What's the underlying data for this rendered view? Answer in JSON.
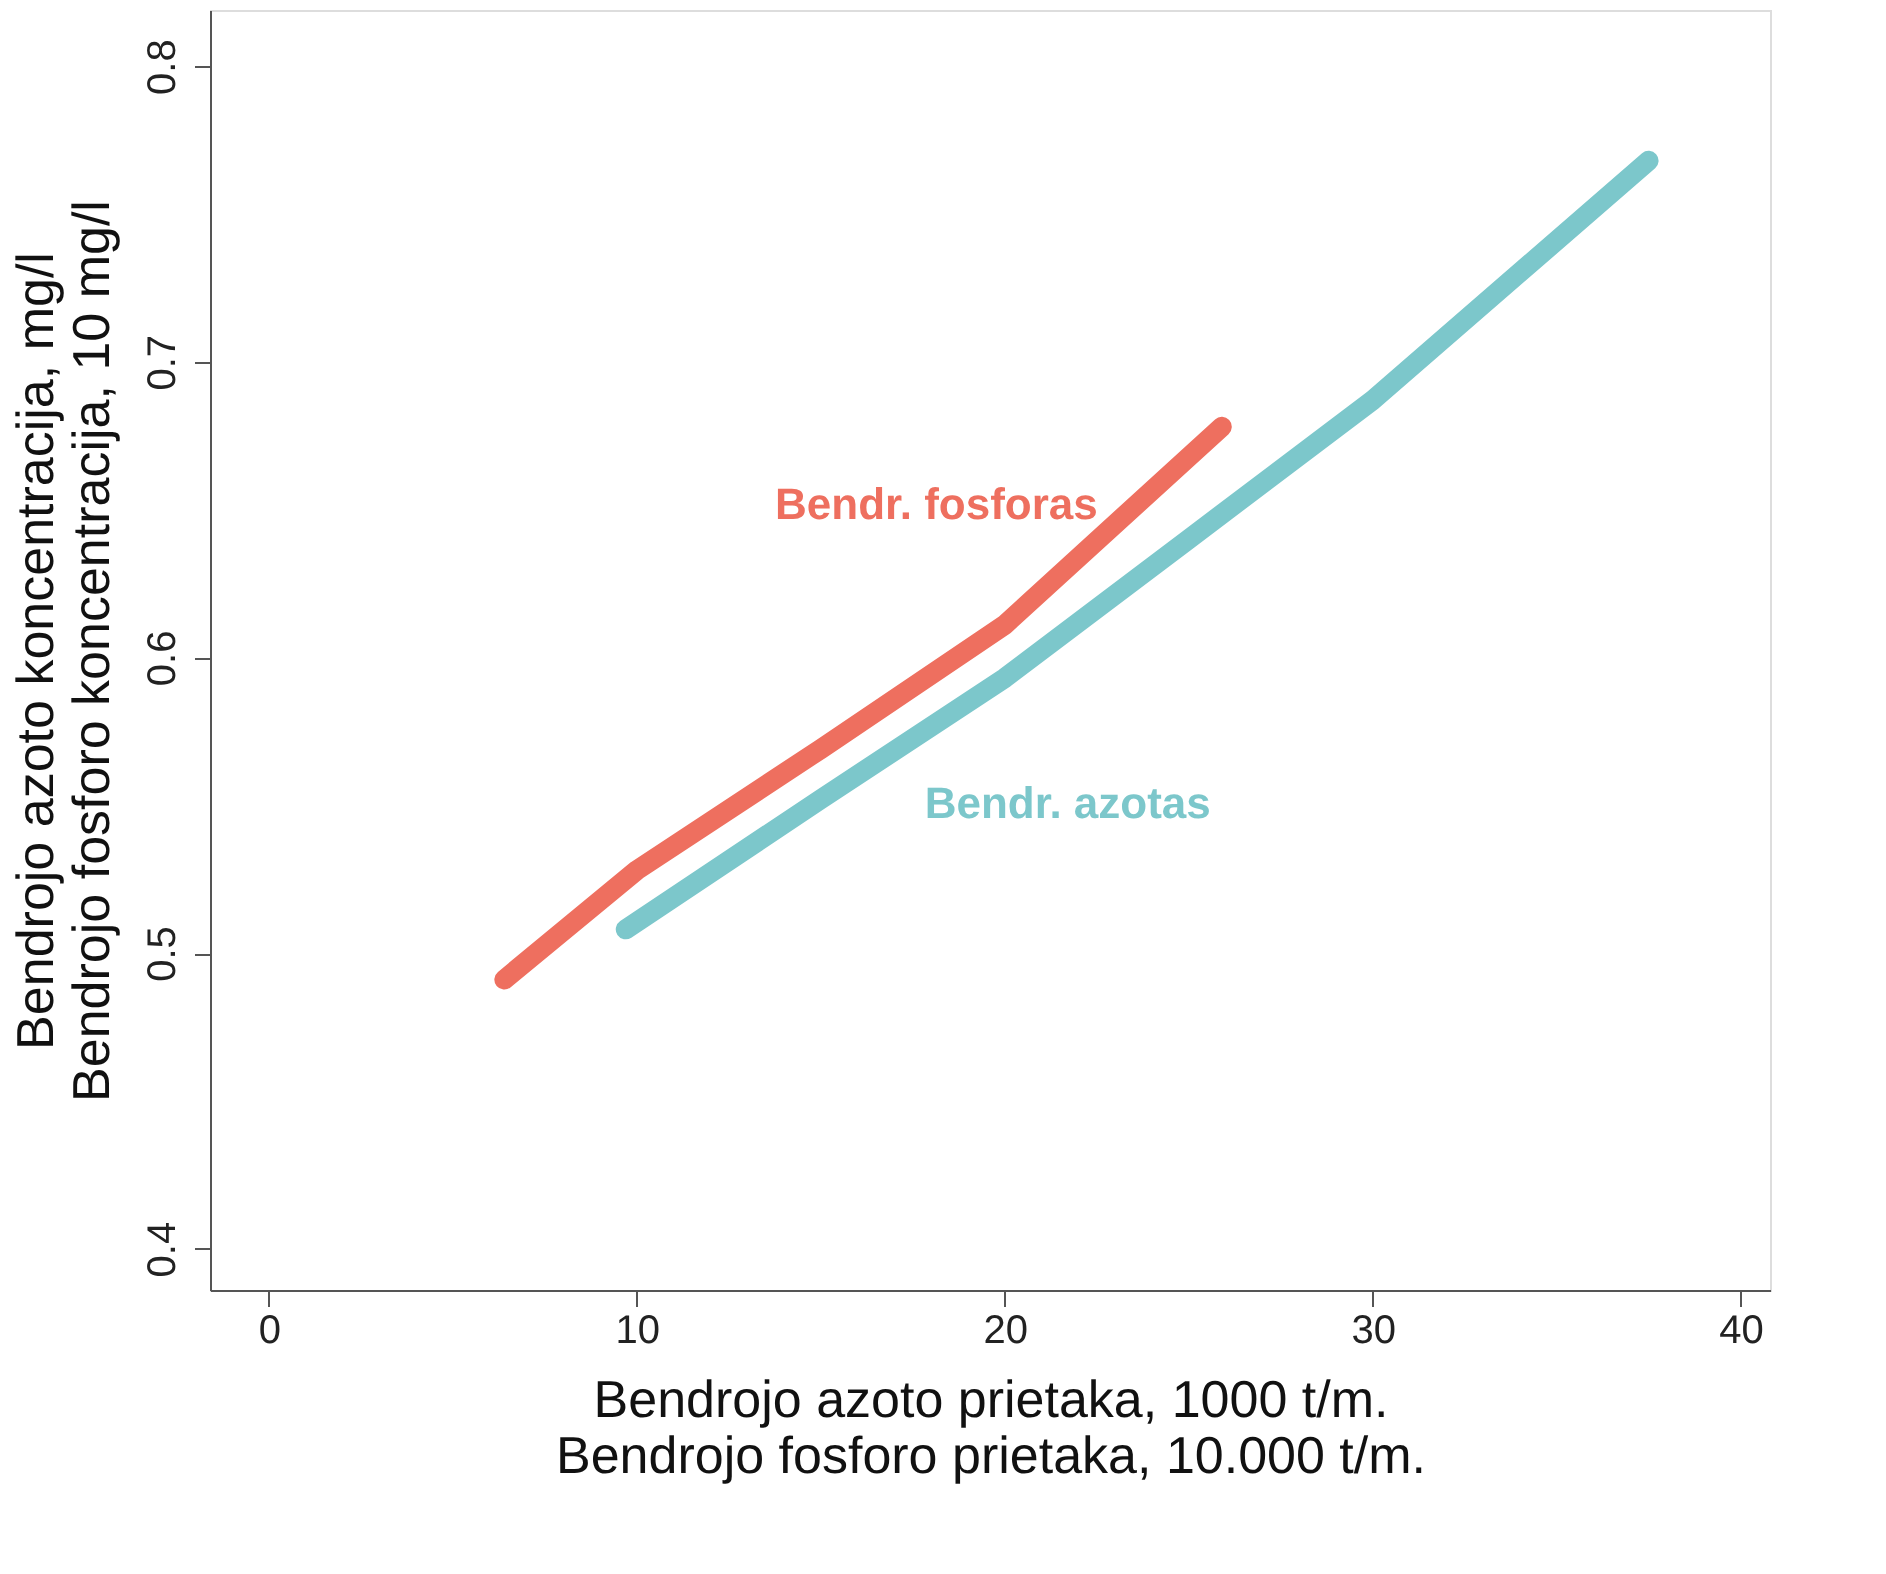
{
  "chart_data": {
    "type": "line",
    "xlabel": "Bendrojo azoto prietaka, 1000 t/m.\nBendrojo fosforo prietaka, 10.000 t/m.",
    "ylabel": "Bendrojo azoto koncentracija, mg/l\nBendrojo fosforo koncentracija, 10 mg/l",
    "series": [
      {
        "name": "Bendr. fosforas",
        "color": "#ee6f5f",
        "x": [
          6.4,
          10,
          15,
          20,
          25.9
        ],
        "values": [
          0.491,
          0.528,
          0.569,
          0.611,
          0.678
        ]
      },
      {
        "name": "Bendr. azotas",
        "color": "#7cc7cb",
        "x": [
          9.7,
          15,
          20,
          25,
          30,
          37.5
        ],
        "values": [
          0.508,
          0.552,
          0.593,
          0.64,
          0.687,
          0.768
        ]
      }
    ],
    "xlim": [
      -1.6,
      40.8
    ],
    "xticks": [
      0,
      10,
      20,
      30,
      40
    ],
    "ylim": [
      0.386,
      0.819
    ],
    "yticks": [
      0.4,
      0.5,
      0.6,
      0.7,
      0.8
    ],
    "grid": false,
    "legend": false,
    "line_style": "solid"
  }
}
